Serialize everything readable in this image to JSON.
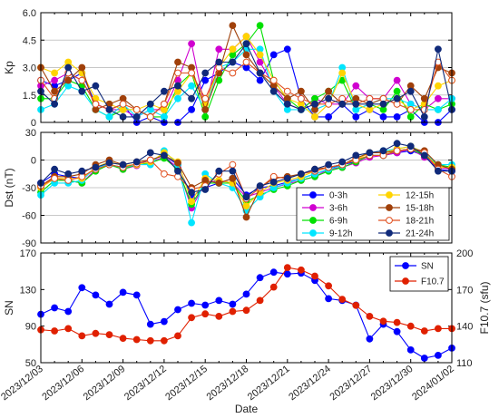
{
  "chart_data": [
    {
      "type": "line",
      "panel": "kp",
      "ylabel": "Kp",
      "ylim": [
        0,
        6
      ],
      "yticks": [
        "0",
        "1.5",
        "3.0",
        "4.5",
        "6.0"
      ],
      "ytick_values": [
        0,
        1.5,
        3,
        4.5,
        6
      ],
      "x": [
        "2023/12/03",
        "2023/12/04",
        "2023/12/05",
        "2023/12/06",
        "2023/12/07",
        "2023/12/08",
        "2023/12/09",
        "2023/12/10",
        "2023/12/11",
        "2023/12/12",
        "2023/12/13",
        "2023/12/14",
        "2023/12/15",
        "2023/12/16",
        "2023/12/17",
        "2023/12/18",
        "2023/12/19",
        "2023/12/20",
        "2023/12/21",
        "2023/12/22",
        "2023/12/23",
        "2023/12/24",
        "2023/12/25",
        "2023/12/26",
        "2023/12/27",
        "2023/12/28",
        "2023/12/29",
        "2023/12/30",
        "2023/12/31",
        "2024/01/01",
        "2024/01/02"
      ],
      "grid": true,
      "series": [
        {
          "name": "0-3h",
          "color": "#0000ff",
          "values": [
            2.3,
            2.0,
            2.3,
            2.7,
            1.0,
            0.7,
            1.0,
            0,
            0.3,
            0,
            0,
            0.7,
            2.3,
            2.7,
            3.3,
            3.0,
            2.3,
            3.7,
            4.0,
            1.3,
            0.3,
            0.3,
            1.0,
            0.3,
            0.7,
            0.3,
            0.3,
            0.7,
            0,
            0,
            0.7
          ]
        },
        {
          "name": "3-6h",
          "color": "#d000d0",
          "values": [
            2.0,
            2.3,
            2.7,
            2.3,
            1.0,
            0.7,
            0.7,
            0.3,
            0.7,
            0.7,
            2.3,
            4.3,
            0.7,
            4.0,
            4.0,
            4.7,
            3.3,
            2.0,
            1.0,
            0.7,
            1.3,
            1.0,
            1.0,
            2.0,
            1.3,
            1.3,
            2.3,
            1.0,
            0.7,
            1.3,
            1.3
          ]
        },
        {
          "name": "6-9h",
          "color": "#00e000",
          "values": [
            1.3,
            1.3,
            2.3,
            2.0,
            0.7,
            0.3,
            0.7,
            0.7,
            0.3,
            0.3,
            2.0,
            2.7,
            0.3,
            2.3,
            3.7,
            4.3,
            5.3,
            2.3,
            1.3,
            0.7,
            1.3,
            1.7,
            2.3,
            0.7,
            1.0,
            0.7,
            1.7,
            0.3,
            1.0,
            0.7,
            1.0
          ]
        },
        {
          "name": "9-12h",
          "color": "#00e5ff",
          "values": [
            0.7,
            1.0,
            2.0,
            1.7,
            0.7,
            0.3,
            1.0,
            0.3,
            0.7,
            0.3,
            1.3,
            2.0,
            0.7,
            3.0,
            3.3,
            4.0,
            4.0,
            1.7,
            0.7,
            0.7,
            0.7,
            1.0,
            3.0,
            0.7,
            1.0,
            1.3,
            1.3,
            1.0,
            0.7,
            0.7,
            1.3
          ]
        },
        {
          "name": "12-15h",
          "color": "#ffd400",
          "values": [
            3.0,
            2.7,
            3.3,
            2.7,
            1.3,
            1.0,
            0.7,
            0.7,
            1.0,
            0.7,
            1.7,
            2.7,
            1.0,
            3.0,
            4.0,
            4.7,
            3.7,
            2.3,
            1.3,
            1.0,
            0.3,
            1.0,
            2.7,
            1.0,
            0.7,
            1.0,
            1.3,
            0.7,
            1.0,
            2.0,
            2.3
          ]
        },
        {
          "name": "15-18h",
          "color": "#a0400a",
          "values": [
            3.0,
            1.7,
            2.3,
            3.0,
            0.7,
            1.0,
            1.3,
            0.7,
            0.3,
            1.0,
            3.3,
            3.0,
            0.7,
            2.7,
            5.3,
            3.7,
            2.7,
            2.0,
            1.3,
            1.7,
            0.7,
            1.7,
            1.0,
            1.3,
            1.0,
            1.3,
            1.0,
            2.0,
            1.3,
            3.0,
            2.7
          ]
        },
        {
          "name": "18-21h",
          "color": "#e05020",
          "values": [
            2.3,
            1.3,
            2.7,
            2.3,
            1.0,
            0.7,
            1.0,
            0.7,
            0.3,
            1.0,
            2.7,
            2.7,
            1.3,
            3.0,
            2.7,
            3.3,
            2.7,
            2.3,
            1.7,
            1.3,
            1.0,
            1.0,
            1.3,
            1.0,
            1.3,
            1.3,
            1.0,
            0.7,
            0.7,
            3.3,
            2.3
          ]
        },
        {
          "name": "21-24h",
          "color": "#102a7a",
          "values": [
            1.7,
            1.0,
            3.0,
            1.7,
            2.0,
            0.7,
            0.3,
            0.3,
            1.0,
            1.7,
            2.0,
            1.3,
            2.7,
            3.3,
            3.3,
            4.3,
            2.7,
            1.7,
            1.0,
            0.7,
            1.0,
            1.3,
            1.0,
            1.0,
            1.0,
            1.0,
            1.3,
            1.7,
            0.3,
            4.0,
            0.7
          ]
        }
      ]
    },
    {
      "type": "line",
      "panel": "dst",
      "ylabel": "Dst (nT)",
      "ylim": [
        -90,
        30
      ],
      "yticks": [
        "-90",
        "-60",
        "-30",
        "0",
        "30"
      ],
      "ytick_values": [
        -90,
        -60,
        -30,
        0,
        30
      ],
      "x": [
        "2023/12/03",
        "2023/12/04",
        "2023/12/05",
        "2023/12/06",
        "2023/12/07",
        "2023/12/08",
        "2023/12/09",
        "2023/12/10",
        "2023/12/11",
        "2023/12/12",
        "2023/12/13",
        "2023/12/14",
        "2023/12/15",
        "2023/12/16",
        "2023/12/17",
        "2023/12/18",
        "2023/12/19",
        "2023/12/20",
        "2023/12/21",
        "2023/12/22",
        "2023/12/23",
        "2023/12/24",
        "2023/12/25",
        "2023/12/26",
        "2023/12/27",
        "2023/12/28",
        "2023/12/29",
        "2023/12/30",
        "2023/12/31",
        "2024/01/01",
        "2024/01/02"
      ],
      "grid": true,
      "legend_position": "bottom-right",
      "series": [
        {
          "name": "0-3h",
          "color": "#0000ff",
          "values": [
            -25,
            -15,
            -18,
            -20,
            -8,
            -5,
            -8,
            -5,
            0,
            5,
            -5,
            -40,
            -30,
            -25,
            -20,
            -38,
            -30,
            -28,
            -24,
            -20,
            -15,
            -10,
            -5,
            -2,
            5,
            5,
            8,
            10,
            5,
            -10,
            -12
          ]
        },
        {
          "name": "3-6h",
          "color": "#d000d0",
          "values": [
            -30,
            -20,
            -22,
            -25,
            -10,
            -5,
            -10,
            -6,
            -2,
            3,
            -8,
            -52,
            -25,
            -22,
            -25,
            -40,
            -35,
            -30,
            -26,
            -22,
            -18,
            -10,
            -8,
            -3,
            3,
            5,
            8,
            12,
            3,
            -8,
            -10
          ]
        },
        {
          "name": "6-9h",
          "color": "#00e000",
          "values": [
            -35,
            -22,
            -22,
            -25,
            -12,
            -5,
            -10,
            -5,
            -3,
            2,
            -10,
            -48,
            -25,
            -25,
            -25,
            -45,
            -38,
            -32,
            -28,
            -22,
            -18,
            -12,
            -8,
            -2,
            5,
            5,
            10,
            12,
            5,
            -5,
            -8
          ]
        },
        {
          "name": "9-12h",
          "color": "#00e5ff",
          "values": [
            -38,
            -25,
            -25,
            -22,
            -8,
            -5,
            -8,
            -5,
            -5,
            10,
            -5,
            -68,
            -15,
            -25,
            -30,
            -55,
            -40,
            -30,
            -25,
            -20,
            -15,
            -10,
            -6,
            2,
            8,
            10,
            12,
            15,
            8,
            -5,
            -5
          ]
        },
        {
          "name": "12-15h",
          "color": "#ffd400",
          "values": [
            -30,
            -20,
            -20,
            -20,
            -8,
            -2,
            -6,
            -5,
            -2,
            8,
            -2,
            -45,
            -20,
            -22,
            -25,
            -50,
            -35,
            -25,
            -22,
            -18,
            -12,
            -8,
            -5,
            0,
            8,
            8,
            12,
            15,
            8,
            -8,
            -8
          ]
        },
        {
          "name": "15-18h",
          "color": "#a0400a",
          "values": [
            -28,
            -18,
            -18,
            -15,
            -5,
            0,
            -5,
            -2,
            0,
            5,
            -3,
            -30,
            -22,
            -25,
            -20,
            -62,
            -30,
            -20,
            -18,
            -15,
            -10,
            -8,
            -5,
            2,
            8,
            8,
            10,
            12,
            10,
            -5,
            -10
          ]
        },
        {
          "name": "18-21h",
          "color": "#e05020",
          "values": [
            -28,
            -20,
            -22,
            -18,
            -10,
            -5,
            -8,
            -4,
            0,
            -15,
            -18,
            -32,
            -28,
            -15,
            -5,
            -42,
            -30,
            -18,
            -20,
            -15,
            -12,
            -8,
            -5,
            0,
            5,
            5,
            10,
            12,
            8,
            -10,
            -18
          ]
        },
        {
          "name": "21-24h",
          "color": "#102a7a",
          "values": [
            -25,
            -10,
            -15,
            -12,
            -8,
            -3,
            -5,
            -2,
            8,
            5,
            -12,
            -35,
            -32,
            -12,
            -12,
            -40,
            -28,
            -24,
            -20,
            -15,
            -10,
            -5,
            -2,
            5,
            8,
            10,
            18,
            15,
            5,
            -12,
            -12
          ]
        }
      ]
    },
    {
      "type": "line",
      "panel": "sn",
      "ylabel_left": "SN",
      "ylabel_right": "F10.7 (sfu)",
      "ylim_left": [
        50,
        170
      ],
      "ylim_right": [
        110,
        200
      ],
      "yticks_left": [
        "50",
        "90",
        "130",
        "170"
      ],
      "ytick_values_left": [
        50,
        90,
        130,
        170
      ],
      "yticks_right": [
        "110",
        "140",
        "170",
        "200"
      ],
      "ytick_values_right": [
        110,
        140,
        170,
        200
      ],
      "xlabel": "Date",
      "x": [
        "2023/12/03",
        "2023/12/04",
        "2023/12/05",
        "2023/12/06",
        "2023/12/07",
        "2023/12/08",
        "2023/12/09",
        "2023/12/10",
        "2023/12/11",
        "2023/12/12",
        "2023/12/13",
        "2023/12/14",
        "2023/12/15",
        "2023/12/16",
        "2023/12/17",
        "2023/12/18",
        "2023/12/19",
        "2023/12/20",
        "2023/12/21",
        "2023/12/22",
        "2023/12/23",
        "2023/12/24",
        "2023/12/25",
        "2023/12/26",
        "2023/12/27",
        "2023/12/28",
        "2023/12/29",
        "2023/12/30",
        "2023/12/31",
        "2024/01/01",
        "2024/01/02"
      ],
      "xticks": [
        "2023/12/03",
        "2023/12/06",
        "2023/12/09",
        "2023/12/12",
        "2023/12/15",
        "2023/12/18",
        "2023/12/21",
        "2023/12/24",
        "2023/12/27",
        "2023/12/30",
        "2024/01/02"
      ],
      "grid": false,
      "legend_position": "top-right",
      "series": [
        {
          "name": "SN",
          "color": "#0000ff",
          "axis": "left",
          "values": [
            103,
            110,
            106,
            132,
            124,
            114,
            127,
            124,
            92,
            95,
            108,
            115,
            113,
            118,
            114,
            125,
            143,
            149,
            147,
            148,
            140,
            120,
            118,
            113,
            76,
            92,
            84,
            64,
            55,
            58,
            66
          ]
        },
        {
          "name": "F10.7",
          "color": "#e02000",
          "axis": "right",
          "values": [
            137,
            136,
            138,
            132,
            134,
            133,
            130,
            129,
            128,
            128,
            132,
            147,
            150,
            148,
            152,
            153,
            161,
            172,
            188,
            186,
            181,
            173,
            162,
            157,
            148,
            144,
            143,
            140,
            136,
            138,
            138
          ]
        }
      ]
    }
  ]
}
